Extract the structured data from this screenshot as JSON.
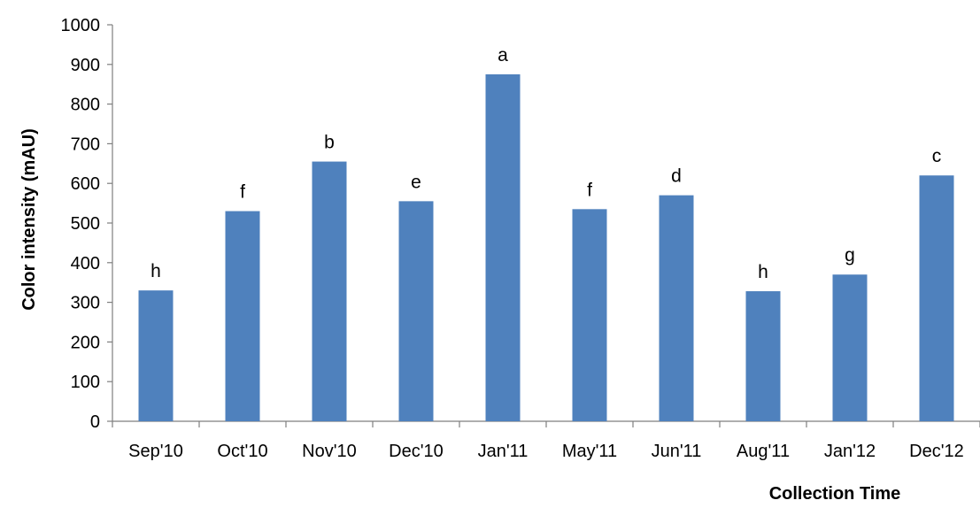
{
  "chart_data": {
    "type": "bar",
    "categories": [
      "Sep'10",
      "Oct'10",
      "Nov'10",
      "Dec'10",
      "Jan'11",
      "May'11",
      "Jun'11",
      "Aug'11",
      "Jan'12",
      "Dec'12"
    ],
    "values": [
      330,
      530,
      655,
      555,
      875,
      535,
      570,
      328,
      370,
      620
    ],
    "data_labels": [
      "h",
      "f",
      "b",
      "e",
      "a",
      "f",
      "d",
      "h",
      "g",
      "c"
    ],
    "xlabel": "Collection Time",
    "ylabel": "Color intensity (mAU)",
    "ylim": [
      0,
      1000
    ],
    "yticks": [
      0,
      100,
      200,
      300,
      400,
      500,
      600,
      700,
      800,
      900,
      1000
    ],
    "grid": false,
    "legend": "none",
    "bar_color": "#4f81bd"
  }
}
